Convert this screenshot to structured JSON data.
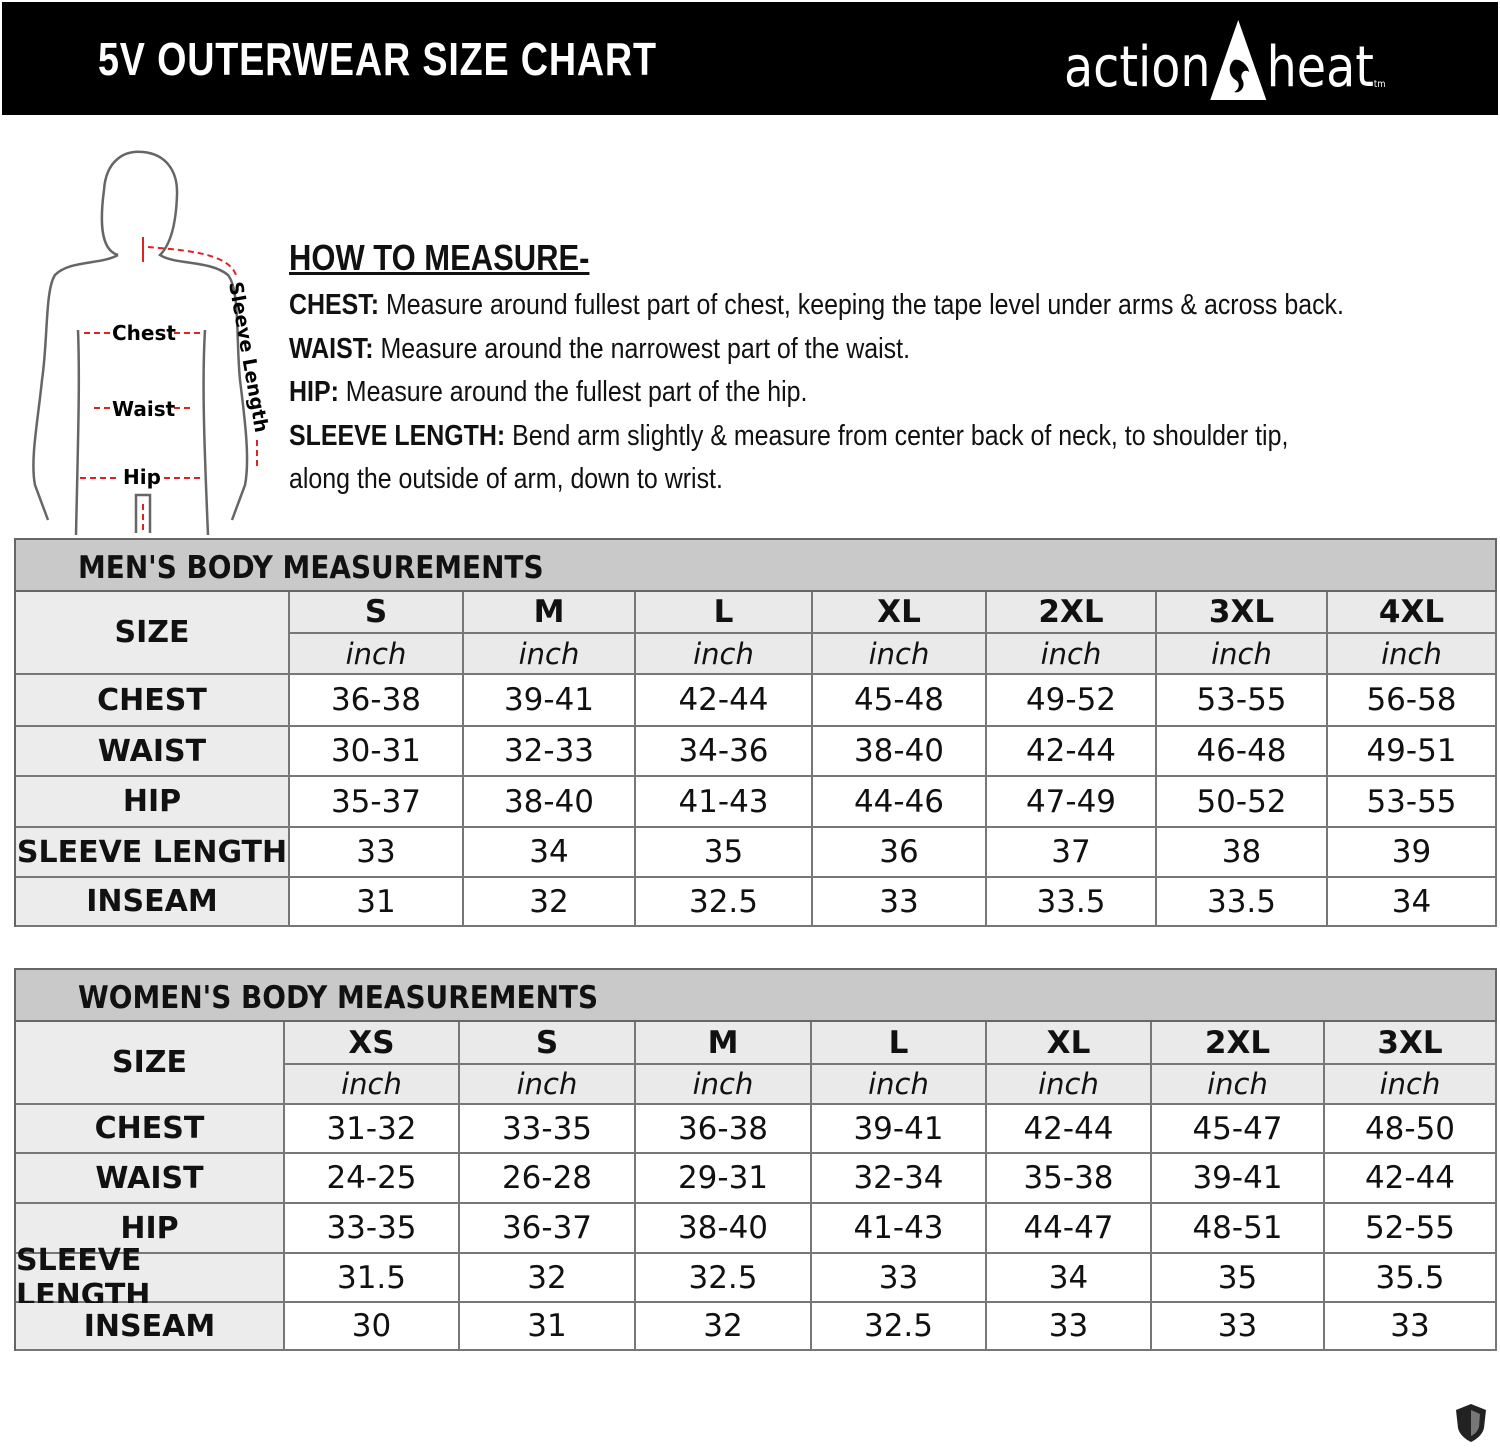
{
  "header": {
    "title": "5V OUTERWEAR SIZE CHART",
    "logo_text_left": "action",
    "logo_text_right": "heat",
    "logo_tm": "tm"
  },
  "figure": {
    "labels": {
      "chest": "Chest",
      "waist": "Waist",
      "hip": "Hip",
      "sleeve": "Sleeve Length"
    }
  },
  "how_to_measure": {
    "heading": "HOW TO MEASURE-",
    "items": [
      {
        "term": "CHEST:",
        "text": " Measure around fullest part of chest, keeping the tape level under arms & across back."
      },
      {
        "term": "WAIST:",
        "text": " Measure around the narrowest part of the waist."
      },
      {
        "term": "HIP:",
        "text": " Measure around the fullest part of the hip."
      },
      {
        "term": "SLEEVE LENGTH:",
        "text": " Bend arm slightly & measure from center back of neck, to shoulder tip,"
      }
    ],
    "continuation": "along the outside of arm, down to wrist."
  },
  "men": {
    "title": "MEN'S BODY MEASUREMENTS",
    "size_label": "SIZE",
    "unit": "inch",
    "sizes": [
      "S",
      "M",
      "L",
      "XL",
      "2XL",
      "3XL",
      "4XL"
    ],
    "rows": [
      {
        "label": "CHEST",
        "values": [
          "36-38",
          "39-41",
          "42-44",
          "45-48",
          "49-52",
          "53-55",
          "56-58"
        ]
      },
      {
        "label": "WAIST",
        "values": [
          "30-31",
          "32-33",
          "34-36",
          "38-40",
          "42-44",
          "46-48",
          "49-51"
        ]
      },
      {
        "label": "HIP",
        "values": [
          "35-37",
          "38-40",
          "41-43",
          "44-46",
          "47-49",
          "50-52",
          "53-55"
        ]
      },
      {
        "label": "SLEEVE LENGTH",
        "values": [
          "33",
          "34",
          "35",
          "36",
          "37",
          "38",
          "39"
        ]
      },
      {
        "label": "INSEAM",
        "values": [
          "31",
          "32",
          "32.5",
          "33",
          "33.5",
          "33.5",
          "34"
        ]
      }
    ]
  },
  "women": {
    "title": "WOMEN'S BODY MEASUREMENTS",
    "size_label": "SIZE",
    "unit": "inch",
    "sizes": [
      "XS",
      "S",
      "M",
      "L",
      "XL",
      "2XL",
      "3XL"
    ],
    "rows": [
      {
        "label": "CHEST",
        "values": [
          "31-32",
          "33-35",
          "36-38",
          "39-41",
          "42-44",
          "45-47",
          "48-50"
        ]
      },
      {
        "label": "WAIST",
        "values": [
          "24-25",
          "26-28",
          "29-31",
          "32-34",
          "35-38",
          "39-41",
          "42-44"
        ]
      },
      {
        "label": "HIP",
        "values": [
          "33-35",
          "36-37",
          "38-40",
          "41-43",
          "44-47",
          "48-51",
          "52-55"
        ]
      },
      {
        "label": "SLEEVE LENGTH",
        "values": [
          "31.5",
          "32",
          "32.5",
          "33",
          "34",
          "35",
          "35.5"
        ]
      },
      {
        "label": "INSEAM",
        "values": [
          "30",
          "31",
          "32",
          "32.5",
          "33",
          "33",
          "33"
        ]
      }
    ]
  },
  "icons": {
    "corner": "shield-icon"
  }
}
